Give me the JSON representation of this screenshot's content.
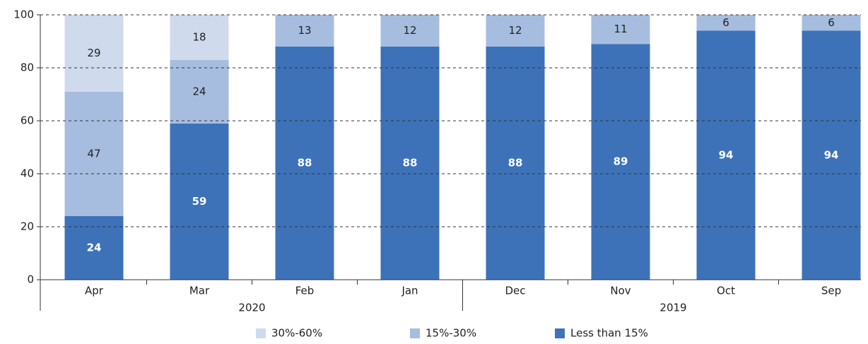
{
  "chart_data": {
    "type": "stacked_bar",
    "categories": [
      "Apr",
      "Mar",
      "Feb",
      "Jan",
      "Dec",
      "Nov",
      "Oct",
      "Sep"
    ],
    "groups": [
      {
        "label": "2020",
        "count": 4
      },
      {
        "label": "2019",
        "count": 4
      }
    ],
    "series": [
      {
        "name": "Less than 15%",
        "color": "#3d72b8",
        "values": [
          24,
          59,
          88,
          88,
          88,
          89,
          94,
          94
        ]
      },
      {
        "name": "15%-30%",
        "color": "#a6bde0",
        "values": [
          47,
          24,
          13,
          12,
          12,
          11,
          6,
          6
        ]
      },
      {
        "name": "30%-60%",
        "color": "#cfdaec",
        "values": [
          29,
          18,
          null,
          null,
          null,
          null,
          null,
          null
        ]
      }
    ],
    "ylim": [
      0,
      100
    ],
    "yticks": [
      0,
      20,
      40,
      60,
      80,
      100
    ],
    "grid": true,
    "legend": "bottom"
  }
}
